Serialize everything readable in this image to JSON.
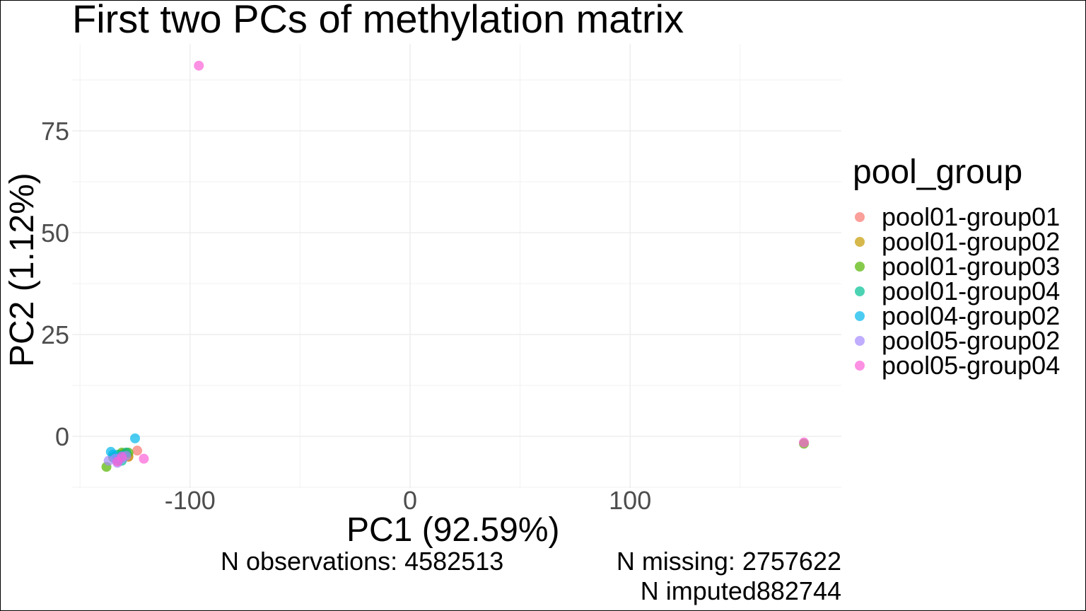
{
  "chart_data": {
    "type": "scatter",
    "title": "First two PCs of methylation matrix",
    "xlabel": "PC1 (92.59%)",
    "ylabel": "PC2 (1.12%)",
    "xlim": [
      -156,
      176
    ],
    "ylim": [
      -12,
      96
    ],
    "x_ticks": [
      -100,
      0,
      100
    ],
    "y_ticks": [
      0,
      25,
      50,
      75
    ],
    "x_tick_labels": [
      "-100",
      "0",
      "100"
    ],
    "y_tick_labels": [
      "0",
      "25",
      "50",
      "75"
    ],
    "grid": true,
    "legend_title": "pool_group",
    "legend_position": "right",
    "caption": {
      "observations": "N observations: 4582513",
      "missing": "N missing: 2757622",
      "imputed": "N imputed882744"
    },
    "series": [
      {
        "name": "pool01-group01",
        "color": "#F8766D",
        "points": [
          [
            -124,
            -3.5
          ],
          [
            -128,
            -5
          ],
          [
            -132,
            -5.5
          ],
          [
            -129,
            -4
          ]
        ]
      },
      {
        "name": "pool01-group02",
        "color": "#C49A00",
        "points": [
          [
            -128,
            -5
          ],
          [
            -131,
            -4.5
          ],
          [
            -133,
            -6
          ],
          [
            -130,
            -4.2
          ]
        ]
      },
      {
        "name": "pool01-group03",
        "color": "#53B400",
        "points": [
          [
            -138,
            -7.5
          ],
          [
            -131,
            -4
          ],
          [
            -133,
            -5.5
          ],
          [
            -128,
            -4
          ],
          [
            -135,
            -5.2
          ],
          [
            179,
            -1.8
          ]
        ]
      },
      {
        "name": "pool01-group04",
        "color": "#00C094",
        "points": [
          [
            -129,
            -4
          ],
          [
            -134,
            -5.5
          ],
          [
            -131,
            -6
          ],
          [
            -133,
            -4.5
          ]
        ]
      },
      {
        "name": "pool04-group02",
        "color": "#00B6EB",
        "points": [
          [
            -125,
            -0.5
          ],
          [
            -136,
            -3.8
          ],
          [
            -135,
            -4.5
          ],
          [
            -133,
            -5.5
          ],
          [
            -131,
            -4.8
          ]
        ]
      },
      {
        "name": "pool05-group02",
        "color": "#A58AFF",
        "points": [
          [
            -137,
            -6
          ],
          [
            -134,
            -5.5
          ],
          [
            -133,
            -6.5
          ],
          [
            -131,
            -5.5
          ],
          [
            -129,
            -4.8
          ]
        ]
      },
      {
        "name": "pool05-group04",
        "color": "#FB61D7",
        "points": [
          [
            -96,
            91
          ],
          [
            -121,
            -5.5
          ],
          [
            -131,
            -5
          ],
          [
            -133,
            -6.2
          ],
          [
            179,
            -1.5
          ]
        ]
      }
    ]
  }
}
